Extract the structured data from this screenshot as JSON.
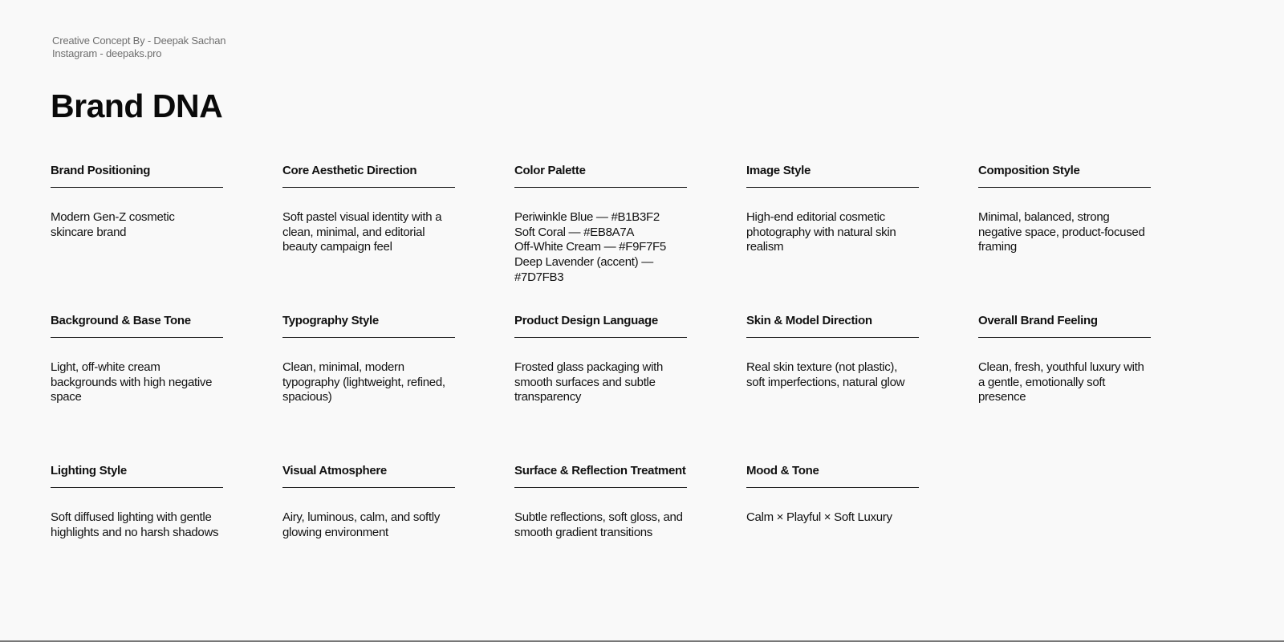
{
  "credit": {
    "line1": "Creative Concept By - Deepak Sachan",
    "line2": "Instagram - deepaks.pro"
  },
  "title": "Brand DNA",
  "cards": [
    {
      "heading": "Brand Positioning",
      "body": "Modern Gen-Z cosmetic\nskincare brand"
    },
    {
      "heading": "Core Aesthetic Direction",
      "body": "Soft pastel visual identity with a\nclean, minimal, and editorial\nbeauty campaign feel"
    },
    {
      "heading": "Color Palette",
      "body": "Periwinkle Blue — #B1B3F2\nSoft Coral — #EB8A7A\nOff-White Cream — #F9F7F5\nDeep Lavender (accent) —\n#7D7FB3"
    },
    {
      "heading": "Image Style",
      "body": "High-end editorial cosmetic\nphotography with natural skin\nrealism"
    },
    {
      "heading": "Composition Style",
      "body": "Minimal, balanced, strong\nnegative space, product-focused\nframing"
    },
    {
      "heading": "Background & Base Tone",
      "body": "Light, off-white cream\nbackgrounds with high negative\nspace"
    },
    {
      "heading": "Typography Style",
      "body": "Clean, minimal, modern\ntypography (lightweight, refined,\nspacious)"
    },
    {
      "heading": "Product Design Language",
      "body": "Frosted glass packaging with\nsmooth surfaces and subtle\ntransparency"
    },
    {
      "heading": "Skin & Model Direction",
      "body": "Real skin texture (not plastic),\nsoft imperfections, natural glow"
    },
    {
      "heading": "Overall Brand Feeling",
      "body": "Clean, fresh, youthful luxury with\na gentle, emotionally soft\npresence"
    },
    {
      "heading": "Lighting Style",
      "body": "Soft diffused lighting with gentle\nhighlights and no harsh shadows"
    },
    {
      "heading": "Visual Atmosphere",
      "body": "Airy, luminous, calm, and softly\nglowing environment"
    },
    {
      "heading": "Surface & Reflection Treatment",
      "body": "Subtle reflections, soft gloss, and\nsmooth gradient transitions"
    },
    {
      "heading": "Mood & Tone",
      "body": "Calm × Playful × Soft Luxury"
    }
  ]
}
